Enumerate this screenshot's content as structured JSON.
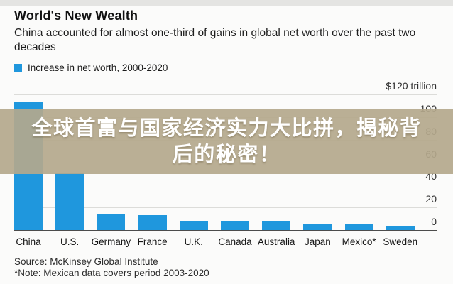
{
  "header": {
    "title": "World's New Wealth",
    "subtitle": "China accounted for almost one-third of gains in global net worth over the past two decades",
    "legend_label": "Increase in net worth, 2000-2020"
  },
  "overlay_banner": {
    "line1": "全球首富与国家经济实力大比拼，揭秘背",
    "line2": "后的秘密！",
    "background_color": "#b4a88c",
    "text_color": "#ffffff"
  },
  "chart_data": {
    "type": "bar",
    "title": "World's New Wealth",
    "subtitle": "China accounted for almost one-third of gains in global net worth over the past two decades",
    "legend": [
      "Increase in net worth, 2000-2020"
    ],
    "legend_position": "top-left",
    "unit_top_label": "$120 trillion",
    "categories": [
      "China",
      "U.S.",
      "Germany",
      "France",
      "U.K.",
      "Canada",
      "Australia",
      "Japan",
      "Mexico*",
      "Sweden"
    ],
    "values": [
      113,
      51,
      14,
      13,
      8,
      8,
      8,
      5,
      5,
      3
    ],
    "y_ticks": [
      0,
      20,
      40,
      60,
      80,
      100,
      120
    ],
    "ylim": [
      0,
      120
    ],
    "grid": true,
    "tick_side": "right",
    "bar_color": "#1f97dd",
    "axis_color": "#4c4c4c"
  },
  "footer": {
    "source": "Source: McKinsey Global Institute",
    "note": "*Note: Mexican data covers period 2003-2020"
  }
}
